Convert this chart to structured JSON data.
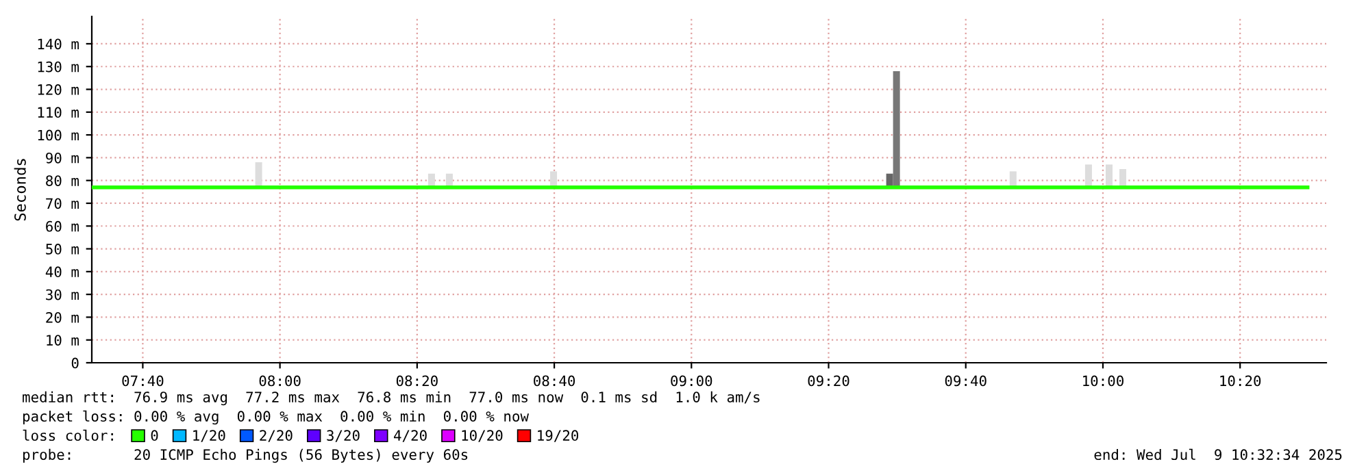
{
  "chart_data": {
    "type": "line",
    "ylabel": "Seconds",
    "x": [
      "2025-07-09T07:32:34",
      "2025-07-09T08:30",
      "2025-07-09T09:30",
      "2025-07-09T10:29:50"
    ],
    "xlim": [
      "2025-07-09T07:32:34",
      "2025-07-09T10:32:34"
    ],
    "xticks": [
      {
        "value": "2025-07-09T07:40",
        "label": "07:40"
      },
      {
        "value": "2025-07-09T08:00",
        "label": "08:00"
      },
      {
        "value": "2025-07-09T08:20",
        "label": "08:20"
      },
      {
        "value": "2025-07-09T08:40",
        "label": "08:40"
      },
      {
        "value": "2025-07-09T09:00",
        "label": "09:00"
      },
      {
        "value": "2025-07-09T09:20",
        "label": "09:20"
      },
      {
        "value": "2025-07-09T09:40",
        "label": "09:40"
      },
      {
        "value": "2025-07-09T10:00",
        "label": "10:00"
      },
      {
        "value": "2025-07-09T10:20",
        "label": "10:20"
      }
    ],
    "ylim": [
      0,
      152
    ],
    "yticks": [
      0,
      {
        "value": 10,
        "label": "10 m"
      },
      {
        "value": 20,
        "label": "20 m"
      },
      {
        "value": 30,
        "label": "30 m"
      },
      {
        "value": 40,
        "label": "40 m"
      },
      {
        "value": 50,
        "label": "50 m"
      },
      {
        "value": 60,
        "label": "60 m"
      },
      {
        "value": 70,
        "label": "70 m"
      },
      {
        "value": 80,
        "label": "80 m"
      },
      {
        "value": 90,
        "label": "90 m"
      },
      {
        "value": 100,
        "label": "100 m"
      },
      {
        "value": 110,
        "label": "110 m"
      },
      {
        "value": 120,
        "label": "120 m"
      },
      {
        "value": 130,
        "label": "130 m"
      },
      {
        "value": 140,
        "label": "140 m"
      }
    ],
    "grid": true,
    "legend": "bottom",
    "legend_title": "loss color:",
    "series": [
      {
        "type": "bar",
        "x": [
          "2025-07-09T07:56:24",
          "2025-07-09T08:21:36",
          "2025-07-09T08:24:12",
          "2025-07-09T08:39:24",
          "2025-07-09T09:28:24",
          "2025-07-09T09:29:24",
          "2025-07-09T09:46:24",
          "2025-07-09T09:57:24",
          "2025-07-09T10:00:24",
          "2025-07-09T10:02:24"
        ],
        "base": [
          77,
          77,
          77,
          77,
          77,
          77,
          77,
          77,
          77,
          77
        ],
        "values": [
          11,
          6,
          6,
          7,
          6,
          51,
          7,
          10,
          10,
          8
        ],
        "colors": [
          "#dddddd",
          "#dddddd",
          "#dddddd",
          "#dddddd",
          "#666666",
          "#777777",
          "#dddddd",
          "#dddddd",
          "#dddddd",
          "#dddddd"
        ]
      },
      {
        "name": "0",
        "color": "#26ff00",
        "values": [
          77,
          77,
          77,
          77
        ]
      },
      {
        "name": "1/20",
        "color": "#00b8ff",
        "values": [
          null,
          null,
          null,
          null
        ]
      },
      {
        "name": "2/20",
        "color": "#0059ff",
        "values": [
          null,
          null,
          null,
          null
        ]
      },
      {
        "name": "3/20",
        "color": "#5e00ff",
        "values": [
          null,
          null,
          null,
          null
        ]
      },
      {
        "name": "4/20",
        "color": "#7e00ff",
        "values": [
          null,
          null,
          null,
          null
        ]
      },
      {
        "name": "10/20",
        "color": "#dd00ff",
        "values": [
          null,
          null,
          null,
          null
        ]
      },
      {
        "name": "19/20",
        "color": "#ff0000",
        "values": [
          null,
          null,
          null,
          null
        ]
      }
    ],
    "annotations": [
      "median rtt:  76.9 ms avg  77.2 ms max  76.8 ms min  77.0 ms now  0.1 ms sd  1.0 k am/s",
      "packet loss: 0.00 % avg  0.00 % max  0.00 % min  0.00 % now",
      "probe:       20 ICMP Echo Pings (56 Bytes) every 60s",
      "end: Wed Jul  9 10:32:34 2025"
    ]
  }
}
